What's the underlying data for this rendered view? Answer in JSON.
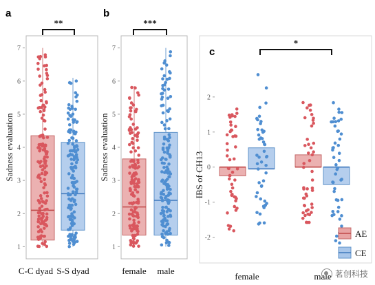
{
  "chart_data": [
    {
      "panel": "a",
      "type": "box",
      "ylabel": "Sadness evaluation",
      "ylim": [
        0.8,
        7.2
      ],
      "yticks": [
        1,
        2,
        3,
        4,
        5,
        6,
        7
      ],
      "categories": [
        "C-C dyad",
        "S-S dyad"
      ],
      "groups": [
        {
          "category": "C-C dyad",
          "color": "#e8a3a3",
          "min": 1.0,
          "q1": 1.2,
          "median": 2.1,
          "q3": 4.35,
          "max": 7.0
        },
        {
          "category": "S-S dyad",
          "color": "#a8c6ea",
          "min": 1.0,
          "q1": 1.5,
          "median": 2.6,
          "q3": 4.15,
          "max": 6.1
        }
      ],
      "significance": "**"
    },
    {
      "panel": "b",
      "type": "box",
      "ylabel": "Sadness evaluation",
      "ylim": [
        0.8,
        7.2
      ],
      "yticks": [
        1,
        2,
        3,
        4,
        5,
        6,
        7
      ],
      "categories": [
        "female",
        "male"
      ],
      "groups": [
        {
          "category": "female",
          "color": "#e8a3a3",
          "min": 1.0,
          "q1": 1.35,
          "median": 2.2,
          "q3": 3.65,
          "max": 5.85
        },
        {
          "category": "male",
          "color": "#a8c6ea",
          "min": 1.0,
          "q1": 1.35,
          "median": 2.4,
          "q3": 4.45,
          "max": 7.0
        }
      ],
      "significance": "***"
    },
    {
      "panel": "c",
      "type": "box",
      "ylabel": "IBS of CH13",
      "ylim": [
        -2.4,
        2.9
      ],
      "yticks": [
        -2,
        -1,
        0,
        1,
        2
      ],
      "categories": [
        "female",
        "male"
      ],
      "series": [
        {
          "name": "AE",
          "color": "#e8a3a3",
          "groups": [
            {
              "category": "female",
              "q1": -0.25,
              "median": 0.0,
              "q3": 0.0
            },
            {
              "category": "male",
              "q1": 0.0,
              "median": 0.0,
              "q3": 0.35
            }
          ]
        },
        {
          "name": "CE",
          "color": "#a8c6ea",
          "groups": [
            {
              "category": "female",
              "q1": -0.05,
              "median": -0.05,
              "q3": 0.55
            },
            {
              "category": "male",
              "q1": -0.5,
              "median": 0.0,
              "q3": 0.0
            }
          ]
        }
      ],
      "legend": [
        "AE",
        "CE"
      ],
      "legend_position": "bottom-right",
      "significance": "*"
    }
  ],
  "watermark": "茗创科技"
}
